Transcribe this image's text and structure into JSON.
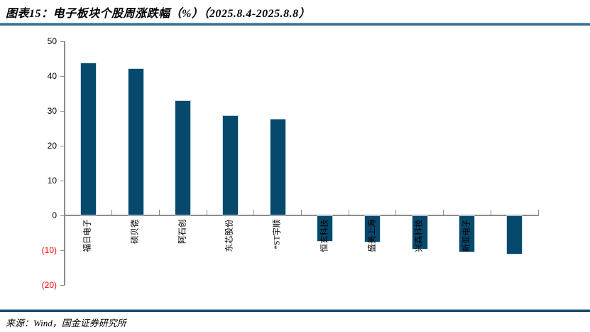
{
  "title": "图表15：电子板块个股周涨跌幅（%）（2025.8.4-2025.8.8）",
  "source_note": "来源：Wind，国金证券研究所",
  "colors": {
    "bar": "#07496c",
    "bar_outline": "#c9dde9",
    "axis": "#8c8c8c",
    "positive_tick_text": "#000000",
    "negative_tick_text": "#ff0000",
    "title_rule": "#3b7095",
    "footer_rule": "#1d4e6e"
  },
  "chart_data": {
    "type": "bar",
    "title": "电子板块个股周涨跌幅（%）（2025.8.4-2025.8.8）",
    "categories": [
      "福日电子",
      "硕贝德",
      "阿石创",
      "东芯股份",
      "*ST宇顺",
      "恒玄科技",
      "盛美上海",
      "兴森科技",
      "新亚电子",
      ""
    ],
    "values": [
      43.9,
      42.3,
      33.0,
      28.7,
      27.8,
      -7.5,
      -7.7,
      -9.7,
      -10.7,
      -11.2
    ],
    "xlabel": "",
    "ylabel": "",
    "ylim": [
      -20,
      50
    ],
    "ytick_interval": 10,
    "ytick_labels": [
      "50",
      "40",
      "30",
      "20",
      "10",
      "0",
      "(10)",
      "(20)"
    ],
    "ytick_values": [
      50,
      40,
      30,
      20,
      10,
      0,
      -10,
      -20
    ],
    "negative_label_style": "red-parentheses",
    "grid": false,
    "legend": "none",
    "bar_color": "#07496c"
  }
}
